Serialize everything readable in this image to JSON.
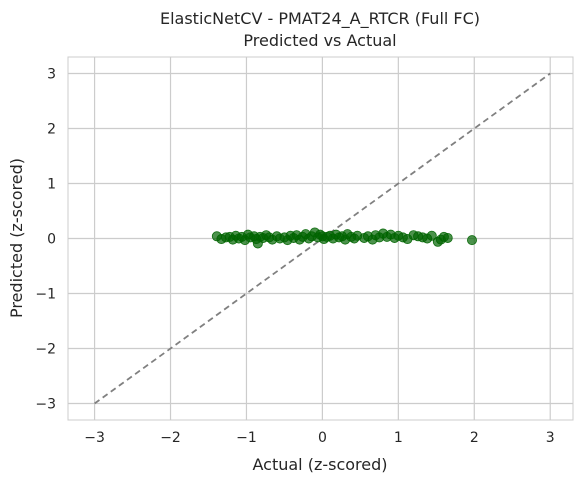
{
  "chart_data": {
    "type": "scatter",
    "title": "ElasticNetCV - PMAT24_A_RTCR (Full FC)",
    "subtitle": "Predicted vs Actual",
    "xlabel": "Actual (z-scored)",
    "ylabel": "Predicted (z-scored)",
    "xlim": [
      -3.35,
      3.3
    ],
    "ylim": [
      -3.3,
      3.3
    ],
    "xticks": [
      -3,
      -2,
      -1,
      0,
      1,
      2,
      3
    ],
    "yticks": [
      -3,
      -2,
      -1,
      0,
      1,
      2,
      3
    ],
    "xtick_labels": [
      "−3",
      "−2",
      "−1",
      "0",
      "1",
      "2",
      "3"
    ],
    "ytick_labels": [
      "−3",
      "−2",
      "−1",
      "0",
      "1",
      "2",
      "3"
    ],
    "grid": true,
    "point_color": "#006400",
    "line_color": "#808080",
    "reference_line": {
      "from": [
        -3,
        -3
      ],
      "to": [
        3,
        3
      ],
      "style": "dashed"
    },
    "points": [
      [
        -1.39,
        0.04
      ],
      [
        -1.33,
        -0.01
      ],
      [
        -1.27,
        0.02
      ],
      [
        -1.22,
        0.03
      ],
      [
        -1.18,
        -0.02
      ],
      [
        -1.14,
        0.05
      ],
      [
        -1.1,
        0.0
      ],
      [
        -1.06,
        0.03
      ],
      [
        -1.02,
        -0.03
      ],
      [
        -0.98,
        0.07
      ],
      [
        -0.95,
        0.02
      ],
      [
        -0.9,
        0.04
      ],
      [
        -0.87,
        -0.01
      ],
      [
        -0.85,
        -0.09
      ],
      [
        -0.82,
        0.03
      ],
      [
        -0.78,
        0.01
      ],
      [
        -0.74,
        0.06
      ],
      [
        -0.7,
        0.02
      ],
      [
        -0.66,
        -0.02
      ],
      [
        -0.6,
        0.04
      ],
      [
        -0.56,
        0.0
      ],
      [
        -0.5,
        0.02
      ],
      [
        -0.46,
        -0.03
      ],
      [
        -0.42,
        0.05
      ],
      [
        -0.38,
        0.01
      ],
      [
        -0.34,
        0.06
      ],
      [
        -0.3,
        -0.02
      ],
      [
        -0.26,
        0.03
      ],
      [
        -0.22,
        0.08
      ],
      [
        -0.18,
        0.0
      ],
      [
        -0.14,
        0.04
      ],
      [
        -0.1,
        0.11
      ],
      [
        -0.06,
        0.02
      ],
      [
        -0.03,
        0.07
      ],
      [
        0.0,
        0.04
      ],
      [
        0.02,
        -0.01
      ],
      [
        0.06,
        0.03
      ],
      [
        0.1,
        0.05
      ],
      [
        0.14,
        0.0
      ],
      [
        0.18,
        0.07
      ],
      [
        0.22,
        0.02
      ],
      [
        0.26,
        0.04
      ],
      [
        0.3,
        -0.02
      ],
      [
        0.33,
        0.08
      ],
      [
        0.38,
        0.03
      ],
      [
        0.42,
        0.0
      ],
      [
        0.46,
        0.05
      ],
      [
        0.55,
        0.01
      ],
      [
        0.6,
        0.04
      ],
      [
        0.66,
        -0.02
      ],
      [
        0.7,
        0.06
      ],
      [
        0.75,
        0.02
      ],
      [
        0.8,
        0.09
      ],
      [
        0.85,
        0.03
      ],
      [
        0.9,
        0.07
      ],
      [
        0.95,
        0.01
      ],
      [
        1.0,
        0.05
      ],
      [
        1.06,
        0.02
      ],
      [
        1.12,
        -0.01
      ],
      [
        1.2,
        0.06
      ],
      [
        1.26,
        0.04
      ],
      [
        1.32,
        0.02
      ],
      [
        1.38,
        0.0
      ],
      [
        1.44,
        0.05
      ],
      [
        1.52,
        -0.06
      ],
      [
        1.56,
        -0.02
      ],
      [
        1.6,
        0.03
      ],
      [
        1.65,
        0.01
      ],
      [
        1.97,
        -0.03
      ]
    ]
  }
}
